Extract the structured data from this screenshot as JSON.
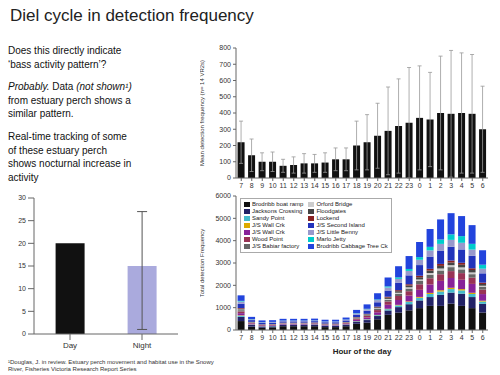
{
  "chart_data": [
    {
      "type": "bar",
      "title": "Diel cycle in detection frequency",
      "categories": [
        7,
        8,
        9,
        10,
        11,
        12,
        13,
        14,
        15,
        16,
        17,
        18,
        19,
        20,
        21,
        22,
        23,
        0,
        1,
        2,
        3,
        4,
        5,
        6
      ],
      "values": [
        220,
        140,
        100,
        100,
        75,
        80,
        90,
        90,
        95,
        115,
        115,
        200,
        220,
        260,
        290,
        320,
        340,
        370,
        360,
        400,
        395,
        400,
        395,
        300
      ],
      "errors": [
        130,
        100,
        55,
        60,
        40,
        50,
        60,
        55,
        60,
        70,
        70,
        150,
        170,
        200,
        270,
        290,
        340,
        320,
        290,
        350,
        390,
        370,
        365,
        265
      ],
      "color": "#111111",
      "ylabel": "Mean detection frequency (n= 14 VR2s)",
      "ylim": [
        0,
        800
      ],
      "yticks": [
        0,
        100,
        200,
        300,
        400,
        500,
        600,
        700,
        800
      ],
      "grid": false
    },
    {
      "type": "bar",
      "stacked": true,
      "categories": [
        7,
        8,
        9,
        10,
        11,
        12,
        13,
        14,
        15,
        16,
        17,
        18,
        19,
        20,
        21,
        22,
        23,
        0,
        1,
        2,
        3,
        4,
        5,
        6
      ],
      "series": [
        {
          "name": "Brodribb boat ramp",
          "color": "#111111",
          "values": [
            400,
            150,
            100,
            120,
            170,
            170,
            170,
            170,
            130,
            130,
            170,
            280,
            330,
            480,
            680,
            780,
            880,
            980,
            1080,
            1080,
            1180,
            1080,
            980,
            780
          ]
        },
        {
          "name": "Jacksons Crossing",
          "color": "#222266",
          "values": [
            190,
            75,
            55,
            45,
            55,
            55,
            55,
            65,
            55,
            55,
            65,
            95,
            115,
            145,
            195,
            245,
            275,
            345,
            395,
            495,
            495,
            545,
            495,
            395
          ]
        },
        {
          "name": "Sandy Point",
          "color": "#44bbcc",
          "values": [
            50,
            18,
            13,
            13,
            13,
            13,
            13,
            13,
            13,
            13,
            13,
            18,
            28,
            38,
            58,
            78,
            98,
            118,
            138,
            148,
            158,
            148,
            138,
            98
          ]
        },
        {
          "name": "J/S Wall Crk",
          "color": "#ddaa00",
          "values": [
            18,
            7,
            4,
            4,
            4,
            4,
            4,
            4,
            4,
            4,
            4,
            7,
            9,
            13,
            18,
            23,
            28,
            38,
            48,
            58,
            58,
            58,
            53,
            38
          ]
        },
        {
          "name": "J/S Wall Crk",
          "color": "#882299",
          "values": [
            95,
            38,
            28,
            28,
            28,
            28,
            28,
            28,
            28,
            28,
            33,
            58,
            78,
            118,
            178,
            218,
            258,
            318,
            378,
            418,
            438,
            418,
            398,
            298
          ]
        },
        {
          "name": "Wood Point",
          "color": "#993355",
          "values": [
            78,
            28,
            23,
            23,
            23,
            23,
            23,
            23,
            23,
            23,
            28,
            48,
            68,
            98,
            148,
            178,
            198,
            248,
            278,
            298,
            308,
            298,
            278,
            198
          ]
        },
        {
          "name": "J/S Babiar factory",
          "color": "#666666",
          "values": [
            58,
            18,
            13,
            13,
            13,
            13,
            13,
            13,
            13,
            13,
            18,
            28,
            38,
            58,
            78,
            98,
            118,
            148,
            158,
            168,
            178,
            168,
            158,
            118
          ]
        },
        {
          "name": "Orford Bridge",
          "color": "#cccccc",
          "values": [
            28,
            9,
            7,
            7,
            7,
            7,
            7,
            7,
            7,
            7,
            9,
            13,
            18,
            28,
            38,
            48,
            58,
            68,
            78,
            88,
            88,
            88,
            78,
            58
          ]
        },
        {
          "name": "Floodgates",
          "color": "#444444",
          "values": [
            38,
            13,
            9,
            9,
            9,
            9,
            9,
            9,
            9,
            9,
            11,
            18,
            23,
            38,
            58,
            68,
            78,
            98,
            108,
            118,
            118,
            118,
            108,
            78
          ]
        },
        {
          "name": "Lockend",
          "color": "#882222",
          "values": [
            28,
            9,
            7,
            7,
            7,
            7,
            7,
            7,
            7,
            7,
            9,
            13,
            18,
            28,
            38,
            48,
            58,
            68,
            78,
            88,
            88,
            88,
            78,
            58
          ]
        },
        {
          "name": "J/S Second Island",
          "color": "#2233bb",
          "values": [
            195,
            78,
            58,
            58,
            58,
            58,
            58,
            58,
            58,
            58,
            68,
            108,
            138,
            198,
            278,
            338,
            398,
            478,
            548,
            598,
            618,
            598,
            558,
            418
          ]
        },
        {
          "name": "J/S Little Benny",
          "color": "#9999cc",
          "values": [
            98,
            38,
            28,
            28,
            28,
            28,
            28,
            28,
            28,
            28,
            33,
            53,
            68,
            98,
            138,
            168,
            198,
            238,
            278,
            298,
            308,
            298,
            278,
            208
          ]
        },
        {
          "name": "Marlo Jetty",
          "color": "#00cccc",
          "values": [
            28,
            9,
            7,
            7,
            7,
            7,
            7,
            7,
            7,
            7,
            9,
            13,
            18,
            28,
            48,
            68,
            88,
            118,
            158,
            198,
            248,
            298,
            258,
            178
          ]
        },
        {
          "name": "Brodribb Cabbage Tree Ck",
          "color": "#2244dd",
          "values": [
            248,
            98,
            78,
            78,
            78,
            78,
            78,
            78,
            78,
            78,
            88,
            148,
            198,
            278,
            398,
            498,
            578,
            678,
            798,
            898,
            948,
            898,
            838,
            648
          ]
        }
      ],
      "xlabel": "Hour of the day",
      "ylabel": "Total detection Frequency",
      "ylim": [
        0,
        6000
      ],
      "yticks": [
        0,
        1000,
        2000,
        3000,
        4000,
        5000,
        6000
      ],
      "legend": "upper left",
      "grid": false
    },
    {
      "type": "bar",
      "categories": [
        "Day",
        "Night"
      ],
      "values": [
        20,
        15
      ],
      "errors": [
        null,
        [
          14,
          12
        ]
      ],
      "colors": [
        "#111111",
        "#aaaadd"
      ],
      "ylim": [
        0,
        30
      ],
      "yticks": [
        0,
        5,
        10,
        15,
        20,
        25,
        30
      ],
      "grid": false,
      "annotations": [
        "Does this directly indicate\n‘bass activity pattern’?",
        "Probably.",
        "Data",
        "(not shown¹)",
        "from estuary perch shows a\nsimilar pattern.",
        "Real-time tracking of some\nof these estuary perch\nshows nocturnal increase in\nactivity",
        "¹Douglas, J. in review. Estuary perch movement and habitat use in the Snowy\nRiver, Fisheries Victoria Research Report Series"
      ]
    }
  ]
}
